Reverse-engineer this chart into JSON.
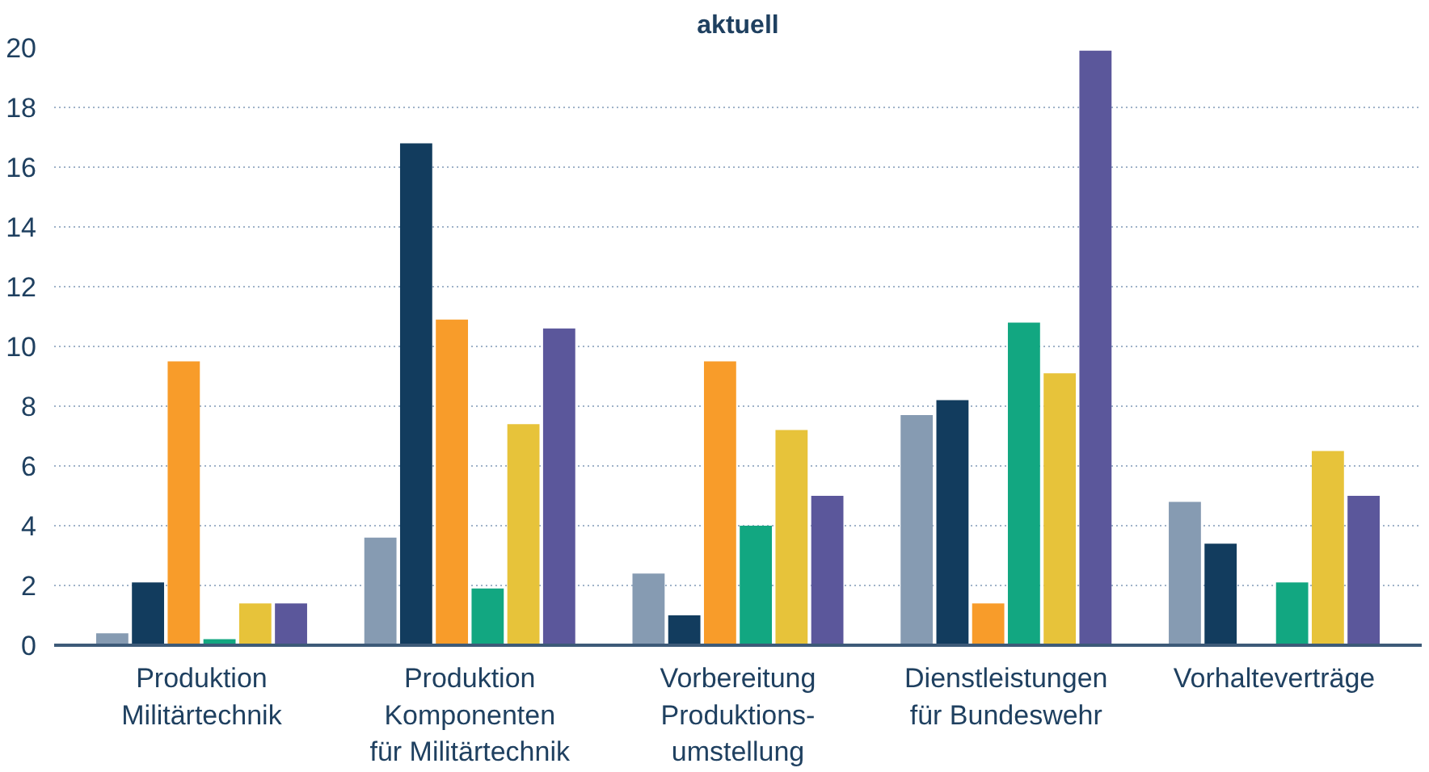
{
  "chart_data": {
    "type": "bar",
    "title": "aktuell",
    "categories": [
      "Produktion\nMilitärtechnik",
      "Produktion\nKomponenten\nfür Militärtechnik",
      "Vorbereitung\nProduktions-\numstellung",
      "Dienstleistungen\nfür Bundeswehr",
      "Vorhalteverträge"
    ],
    "series": [
      {
        "color": "#869bb2",
        "values": [
          0.4,
          3.6,
          2.4,
          7.7,
          4.8
        ]
      },
      {
        "color": "#123c5e",
        "values": [
          2.1,
          16.8,
          1.0,
          8.2,
          3.4
        ]
      },
      {
        "color": "#f89c2a",
        "values": [
          9.5,
          10.9,
          9.5,
          1.4,
          null
        ]
      },
      {
        "color": "#12a781",
        "values": [
          0.2,
          1.9,
          4.0,
          10.8,
          2.1
        ]
      },
      {
        "color": "#e7c33a",
        "values": [
          1.4,
          7.4,
          7.2,
          9.1,
          6.5
        ]
      },
      {
        "color": "#5b579b",
        "values": [
          1.4,
          10.6,
          5.0,
          19.9,
          5.0
        ]
      }
    ],
    "ylim": [
      0,
      20
    ],
    "yticks": [
      0,
      2,
      4,
      6,
      8,
      10,
      12,
      14,
      16,
      18,
      20
    ],
    "grid": "y"
  }
}
